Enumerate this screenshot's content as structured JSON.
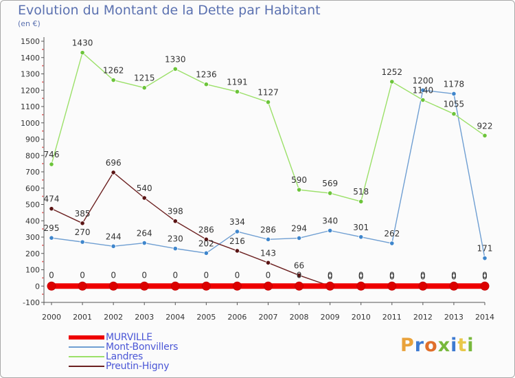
{
  "title": "Evolution du Montant de la Dette par Habitant",
  "subtitle": "(en €)",
  "logo_text": "Proxiti",
  "logo_colors": [
    "#e9a23b",
    "#3d7ad1",
    "#e06f2b",
    "#78b83c",
    "#3d7ad1",
    "#e9c84a",
    "#78b83c"
  ],
  "legend": {
    "items": [
      {
        "label": "MURVILLE",
        "color": "#ee0000"
      },
      {
        "label": "Mont-Bonvillers",
        "color": "#6e9ed2"
      },
      {
        "label": "Landres",
        "color": "#9be068"
      },
      {
        "label": "Preutin-Higny",
        "color": "#6b1f1f"
      }
    ]
  },
  "chart_data": {
    "type": "line",
    "title": "Evolution du Montant de la Dette par Habitant",
    "ylabel": "(en €)",
    "xlabel": "",
    "x": [
      "2000",
      "2001",
      "2002",
      "2003",
      "2004",
      "2005",
      "2006",
      "2007",
      "2008",
      "2009",
      "2010",
      "2011",
      "2012",
      "2013",
      "2014"
    ],
    "ylim": [
      -100,
      1500
    ],
    "yticks": [
      -100,
      0,
      100,
      200,
      300,
      400,
      500,
      600,
      700,
      800,
      900,
      1000,
      1100,
      1200,
      1300,
      1400,
      1500
    ],
    "grid": false,
    "series": [
      {
        "name": "MURVILLE",
        "color": "#ee0000",
        "point_color": "#dd0000",
        "values": [
          0,
          0,
          0,
          0,
          0,
          0,
          0,
          0,
          0,
          0,
          0,
          0,
          0,
          0,
          0
        ],
        "labels": [
          "0",
          "0",
          "0",
          "0",
          "0",
          "0",
          "0",
          "0",
          "0",
          "0",
          "0",
          "0",
          "0",
          "0",
          "0"
        ]
      },
      {
        "name": "Mont-Bonvillers",
        "color": "#6e9ed2",
        "point_color": "#3f86cc",
        "values": [
          295,
          270,
          244,
          264,
          230,
          202,
          334,
          286,
          294,
          340,
          301,
          262,
          1200,
          1178,
          171
        ],
        "labels": [
          "295",
          "270",
          "244",
          "264",
          "230",
          "202",
          "334",
          "286",
          "294",
          "340",
          "301",
          "262",
          "1200",
          "1178",
          "171"
        ]
      },
      {
        "name": "Landres",
        "color": "#9be068",
        "point_color": "#6cc43a",
        "values": [
          746,
          1430,
          1262,
          1215,
          1330,
          1236,
          1191,
          1127,
          590,
          569,
          518,
          1252,
          1140,
          1055,
          922
        ],
        "labels": [
          "746",
          "1430",
          "1262",
          "1215",
          "1330",
          "1236",
          "1191",
          "1127",
          "590",
          "569",
          "518",
          "1252",
          "1140",
          "1055",
          "922"
        ]
      },
      {
        "name": "Preutin-Higny",
        "color": "#6b1f1f",
        "point_color": "#5a1414",
        "values": [
          474,
          385,
          696,
          540,
          398,
          286,
          216,
          143,
          66,
          0,
          0,
          0,
          0,
          0,
          0
        ],
        "labels": [
          "474",
          "385",
          "696",
          "540",
          "398",
          "286",
          "216",
          "143",
          "66",
          "0",
          "0",
          "0",
          "0",
          "0",
          "0"
        ]
      }
    ]
  }
}
